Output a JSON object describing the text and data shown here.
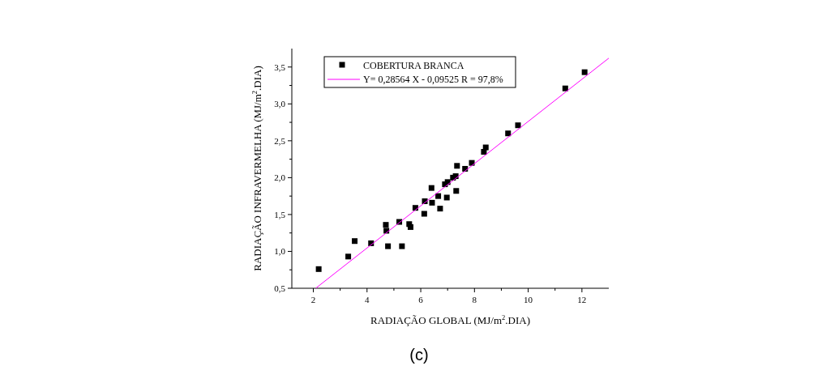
{
  "chart_data": {
    "type": "scatter",
    "xlabel": "RADIAÇÃO GLOBAL (MJ/m$^{2}$.DIA)",
    "ylabel": "RADIAÇÃO INFRAVERMELHA (MJ/m$^{2}$.DIA)",
    "xlim": [
      1.2,
      13
    ],
    "ylim": [
      0.5,
      3.75
    ],
    "xticks": [
      2,
      {
        "value": 3,
        "label": null
      },
      4,
      {
        "value": 5,
        "label": null
      },
      6,
      {
        "value": 7,
        "label": null
      },
      8,
      {
        "value": 9,
        "label": null
      },
      10,
      {
        "value": 11,
        "label": null
      },
      12
    ],
    "yticks": [
      {
        "value": 0.5,
        "label": "0,5"
      },
      {
        "value": 0.75,
        "label": null
      },
      {
        "value": 1,
        "label": "1,0"
      },
      {
        "value": 1.25,
        "label": null
      },
      {
        "value": 1.5,
        "label": "1,5"
      },
      {
        "value": 1.75,
        "label": null
      },
      {
        "value": 2,
        "label": "2,0"
      },
      {
        "value": 2.25,
        "label": null
      },
      {
        "value": 2.5,
        "label": "2,5"
      },
      {
        "value": 2.75,
        "label": null
      },
      {
        "value": 3,
        "label": "3,0"
      },
      {
        "value": 3.25,
        "label": null
      },
      {
        "value": 3.5,
        "label": "3,5"
      }
    ],
    "legend": "top",
    "grid": false,
    "series": [
      {
        "name": "COBERTURA BRANCA",
        "marker": "square",
        "color": "#000000",
        "x": [
          2.2,
          3.3,
          3.54,
          4.15,
          4.7,
          4.72,
          4.78,
          5.2,
          5.3,
          5.57,
          5.62,
          5.8,
          6.13,
          6.15,
          6.4,
          6.42,
          6.65,
          6.72,
          6.9,
          6.97,
          7.0,
          7.2,
          7.32,
          7.3,
          7.35,
          7.65,
          7.9,
          8.35,
          8.42,
          9.25,
          9.62,
          11.38,
          12.1
        ],
        "values": [
          0.76,
          0.93,
          1.14,
          1.11,
          1.36,
          1.28,
          1.07,
          1.4,
          1.07,
          1.37,
          1.33,
          1.59,
          1.51,
          1.68,
          1.86,
          1.66,
          1.75,
          1.58,
          1.91,
          1.73,
          1.94,
          2.0,
          1.82,
          2.02,
          2.16,
          2.12,
          2.2,
          2.35,
          2.41,
          2.6,
          2.71,
          3.21,
          3.43
        ]
      },
      {
        "name": "Y= 0,28564 X - 0,09525  R = 97,8%",
        "type": "line",
        "marker": "none",
        "color": "#ff00ff",
        "x": [
          2.09,
          13
        ],
        "values": [
          0.5,
          3.62
        ]
      }
    ],
    "annotations": [
      "(c)"
    ]
  }
}
